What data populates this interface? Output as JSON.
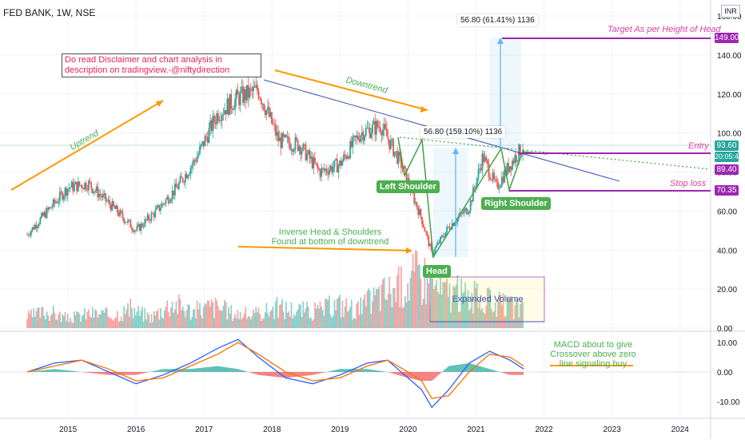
{
  "header": {
    "title": "FED BANK, 1W, NSE",
    "currency": "INR"
  },
  "chart_data": [
    {
      "type": "candlestick",
      "title": "FED BANK, 1W, NSE",
      "ylim": [
        0,
        160
      ],
      "y_ticks": [
        0,
        20,
        40,
        60,
        80,
        100,
        120,
        140,
        160
      ],
      "y_tick_labels": [
        "0.00",
        "20.00",
        "40.00",
        "60.00",
        "80.00",
        "100.00",
        "120.00",
        "140.00",
        "160.00"
      ],
      "x_tick_labels": [
        "2015",
        "2016",
        "2017",
        "2018",
        "2019",
        "2020",
        "2021",
        "2022",
        "2023",
        "2024"
      ],
      "x": [
        2014.4,
        2014.7,
        2015.0,
        2015.3,
        2015.6,
        2016.0,
        2016.3,
        2016.6,
        2016.9,
        2017.2,
        2017.5,
        2017.8,
        2018.1,
        2018.4,
        2018.7,
        2019.0,
        2019.3,
        2019.6,
        2019.9,
        2020.2,
        2020.35,
        2020.6,
        2020.9,
        2021.1,
        2021.3,
        2021.5,
        2021.7
      ],
      "close": [
        48,
        60,
        72,
        74,
        64,
        50,
        60,
        72,
        88,
        110,
        118,
        122,
        96,
        94,
        80,
        84,
        100,
        104,
        84,
        56,
        38,
        52,
        62,
        88,
        72,
        84,
        93.6
      ],
      "price_labels": [
        {
          "text": "149.00",
          "value": 149.0,
          "color": "#9c27b0"
        },
        {
          "text": "93.60",
          "value": 93.6,
          "color": "#26a69a"
        },
        {
          "text": "20:05:46",
          "value": 93.6,
          "color": "#26a69a"
        },
        {
          "text": "89.40",
          "value": 89.4,
          "color": "#9c27b0"
        },
        {
          "text": "70.35",
          "value": 70.35,
          "color": "#9c27b0"
        }
      ],
      "levels": {
        "target": 149.0,
        "entry": 89.4,
        "stop_loss": 70.35,
        "last_price": 93.6
      },
      "annotations": {
        "disclaimer": "Do read Disclaimer and chart analysis in description on tradingview.-@niftydirection",
        "uptrend": "Uptrend",
        "downtrend": "Downtrend",
        "left_shoulder": "Left Shoulder",
        "head": "Head",
        "right_shoulder": "Right Shoulder",
        "ihs_line1": "Inverse Head & Shoulders",
        "ihs_line2": "Found at bottom of downtrend",
        "expanded_volume": "Expanded Volume",
        "measure1": "56.80 (159.10%) 1136",
        "measure2": "56.80 (61.41%) 1136",
        "target_note": "Target As per Height of Head",
        "entry_note": "Entry",
        "stop_note": "Stop loss"
      }
    },
    {
      "type": "bar",
      "title": "",
      "series": [
        {
          "name": "",
          "values": [
            6,
            9,
            5,
            8,
            7,
            10,
            6,
            14,
            9,
            12,
            8,
            7,
            11,
            10,
            9,
            13,
            10,
            18,
            22,
            30,
            20,
            18,
            15,
            12,
            10
          ]
        }
      ],
      "ylim": [
        0,
        30
      ],
      "y_tick_labels": [
        "0.00",
        "20.00"
      ]
    },
    {
      "type": "line",
      "title": "",
      "x": [
        2014.4,
        2014.8,
        2015.2,
        2015.6,
        2016.0,
        2016.4,
        2016.8,
        2017.2,
        2017.5,
        2017.8,
        2018.2,
        2018.6,
        2019.0,
        2019.4,
        2019.7,
        2020.0,
        2020.2,
        2020.35,
        2020.6,
        2020.9,
        2021.2,
        2021.5,
        2021.7
      ],
      "series": [
        {
          "name": "MACD",
          "color": "#2962ff",
          "values": [
            0,
            3,
            4,
            0,
            -4,
            -1,
            3,
            8,
            11,
            5,
            -2,
            -4,
            -1,
            3,
            4,
            -2,
            -6,
            -12,
            -6,
            3,
            7,
            4,
            1
          ]
        },
        {
          "name": "Signal",
          "color": "#ff6d00",
          "values": [
            0,
            2,
            4,
            1,
            -3,
            -2,
            2,
            6,
            10,
            6,
            0,
            -3,
            -2,
            2,
            4,
            0,
            -3,
            -9,
            -8,
            0,
            6,
            5,
            2
          ]
        }
      ],
      "histogram": [
        0,
        1,
        0,
        -1,
        -1,
        1,
        1,
        2,
        1,
        -1,
        -2,
        -1,
        1,
        1,
        0,
        -2,
        -3,
        -3,
        2,
        3,
        1,
        -1,
        -1
      ],
      "ylim": [
        -13,
        12
      ],
      "y_tick_labels": [
        "10.00",
        "0.00",
        "-10.00"
      ],
      "annotation": "MACD about to give Crossover above zero line signaling buy"
    }
  ],
  "colors": {
    "up": "#26a69a",
    "down": "#ef5350",
    "trend_arrow": "#ff9800",
    "pattern": "#4caf50",
    "level": "#9c27b0",
    "measure": "#64b5f6"
  }
}
